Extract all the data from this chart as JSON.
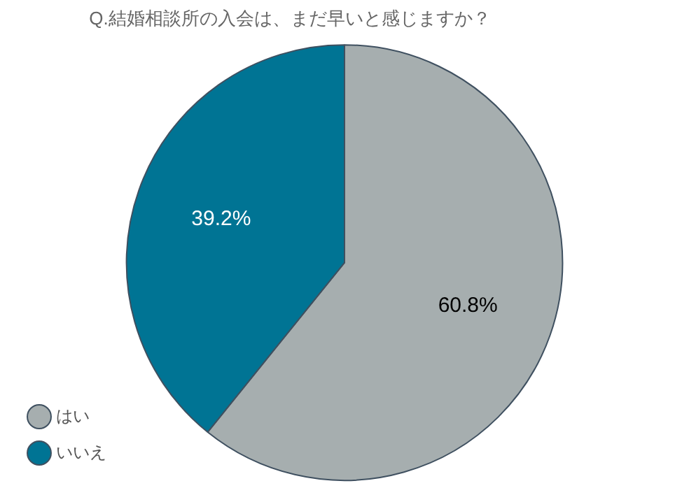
{
  "chart_data": {
    "type": "pie",
    "title": "Q.結婚相談所の入会は、まだ早いと感じますか？",
    "categories": [
      "はい",
      "いいえ"
    ],
    "values": [
      60.8,
      39.2
    ],
    "value_labels": [
      "60.8%",
      "39.2%"
    ],
    "colors": [
      "#a6aeaf",
      "#007494"
    ],
    "legend": "bottom left"
  }
}
